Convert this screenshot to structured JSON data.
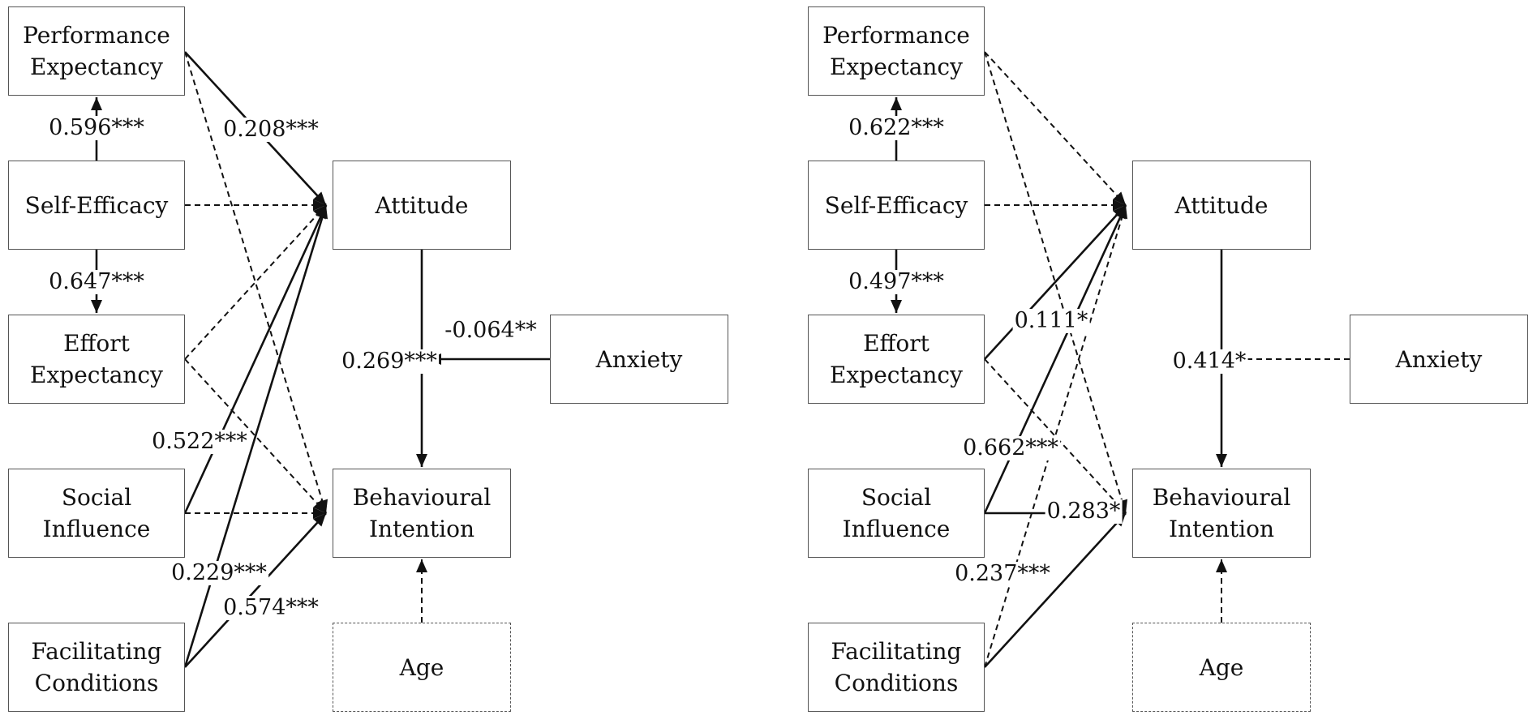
{
  "colors": {
    "line": "#111111",
    "box_border": "#555555",
    "text": "#111111",
    "background": "#ffffff"
  },
  "left_model": {
    "boxes": {
      "performance_expectancy": [
        "Performance",
        "Expectancy"
      ],
      "self_efficacy": [
        "Self-Efficacy"
      ],
      "effort_expectancy": [
        "Effort",
        "Expectancy"
      ],
      "social_influence": [
        "Social",
        "Influence"
      ],
      "facilitating_conditions": [
        "Facilitating",
        "Conditions"
      ],
      "attitude": [
        "Attitude"
      ],
      "behavioural_intention": [
        "Behavioural",
        "Intention"
      ],
      "anxiety": [
        "Anxiety"
      ],
      "age": [
        "Age"
      ]
    },
    "paths": [
      {
        "id": "se-pe",
        "from": "Self-Efficacy",
        "to": "Performance Expectancy",
        "coef": "0.596***",
        "significant": true
      },
      {
        "id": "se-ee",
        "from": "Self-Efficacy",
        "to": "Effort Expectancy",
        "coef": "0.647***",
        "significant": true
      },
      {
        "id": "pe-at",
        "from": "Performance Expectancy",
        "to": "Attitude",
        "coef": "0.208***",
        "significant": true
      },
      {
        "id": "pe-bi",
        "from": "Performance Expectancy",
        "to": "Behavioural Intention",
        "coef": "",
        "significant": false
      },
      {
        "id": "se-at",
        "from": "Self-Efficacy",
        "to": "Attitude",
        "coef": "",
        "significant": false
      },
      {
        "id": "ee-at",
        "from": "Effort Expectancy",
        "to": "Attitude",
        "coef": "",
        "significant": false
      },
      {
        "id": "ee-bi",
        "from": "Effort Expectancy",
        "to": "Behavioural Intention",
        "coef": "",
        "significant": false
      },
      {
        "id": "si-at",
        "from": "Social Influence",
        "to": "Attitude",
        "coef": "0.522***",
        "significant": true
      },
      {
        "id": "si-bi",
        "from": "Social Influence",
        "to": "Behavioural Intention",
        "coef": "",
        "significant": false
      },
      {
        "id": "fc-at",
        "from": "Facilitating Conditions",
        "to": "Attitude",
        "coef": "0.229***",
        "significant": true
      },
      {
        "id": "fc-bi",
        "from": "Facilitating Conditions",
        "to": "Behavioural Intention",
        "coef": "0.574***",
        "significant": true
      },
      {
        "id": "at-bi",
        "from": "Attitude",
        "to": "Behavioural Intention",
        "coef": "0.269***",
        "significant": true
      },
      {
        "id": "anx-mod",
        "from": "Anxiety",
        "to": "Attitude → Behavioural Intention",
        "coef": "-0.064**",
        "significant": true
      },
      {
        "id": "age-bi",
        "from": "Age",
        "to": "Behavioural Intention",
        "coef": "",
        "significant": false
      }
    ]
  },
  "right_model": {
    "boxes": {
      "performance_expectancy": [
        "Performance",
        "Expectancy"
      ],
      "self_efficacy": [
        "Self-Efficacy"
      ],
      "effort_expectancy": [
        "Effort",
        "Expectancy"
      ],
      "social_influence": [
        "Social",
        "Influence"
      ],
      "facilitating_conditions": [
        "Facilitating",
        "Conditions"
      ],
      "attitude": [
        "Attitude"
      ],
      "behavioural_intention": [
        "Behavioural",
        "Intention"
      ],
      "anxiety": [
        "Anxiety"
      ],
      "age": [
        "Age"
      ]
    },
    "paths": [
      {
        "id": "se-pe",
        "from": "Self-Efficacy",
        "to": "Performance Expectancy",
        "coef": "0.622***",
        "significant": true
      },
      {
        "id": "se-ee",
        "from": "Self-Efficacy",
        "to": "Effort Expectancy",
        "coef": "0.497***",
        "significant": true
      },
      {
        "id": "pe-at",
        "from": "Performance Expectancy",
        "to": "Attitude",
        "coef": "",
        "significant": false
      },
      {
        "id": "pe-bi",
        "from": "Performance Expectancy",
        "to": "Behavioural Intention",
        "coef": "",
        "significant": false
      },
      {
        "id": "se-at",
        "from": "Self-Efficacy",
        "to": "Attitude",
        "coef": "",
        "significant": false
      },
      {
        "id": "ee-at",
        "from": "Effort Expectancy",
        "to": "Attitude",
        "coef": "0.111*",
        "significant": true
      },
      {
        "id": "ee-bi",
        "from": "Effort Expectancy",
        "to": "Behavioural Intention",
        "coef": "",
        "significant": false
      },
      {
        "id": "si-at",
        "from": "Social Influence",
        "to": "Attitude",
        "coef": "0.662***",
        "significant": true
      },
      {
        "id": "si-bi",
        "from": "Social Influence",
        "to": "Behavioural Intention",
        "coef": "0.283*",
        "significant": true
      },
      {
        "id": "fc-at",
        "from": "Facilitating Conditions",
        "to": "Attitude",
        "coef": "",
        "significant": false
      },
      {
        "id": "fc-bi",
        "from": "Facilitating Conditions",
        "to": "Behavioural Intention",
        "coef": "0.237***",
        "significant": true
      },
      {
        "id": "at-bi",
        "from": "Attitude",
        "to": "Behavioural Intention",
        "coef": "0.414*",
        "significant": true
      },
      {
        "id": "anx-mod",
        "from": "Anxiety",
        "to": "Attitude → Behavioural Intention",
        "coef": "",
        "significant": false
      },
      {
        "id": "age-bi",
        "from": "Age",
        "to": "Behavioural Intention",
        "coef": "",
        "significant": false
      }
    ]
  }
}
